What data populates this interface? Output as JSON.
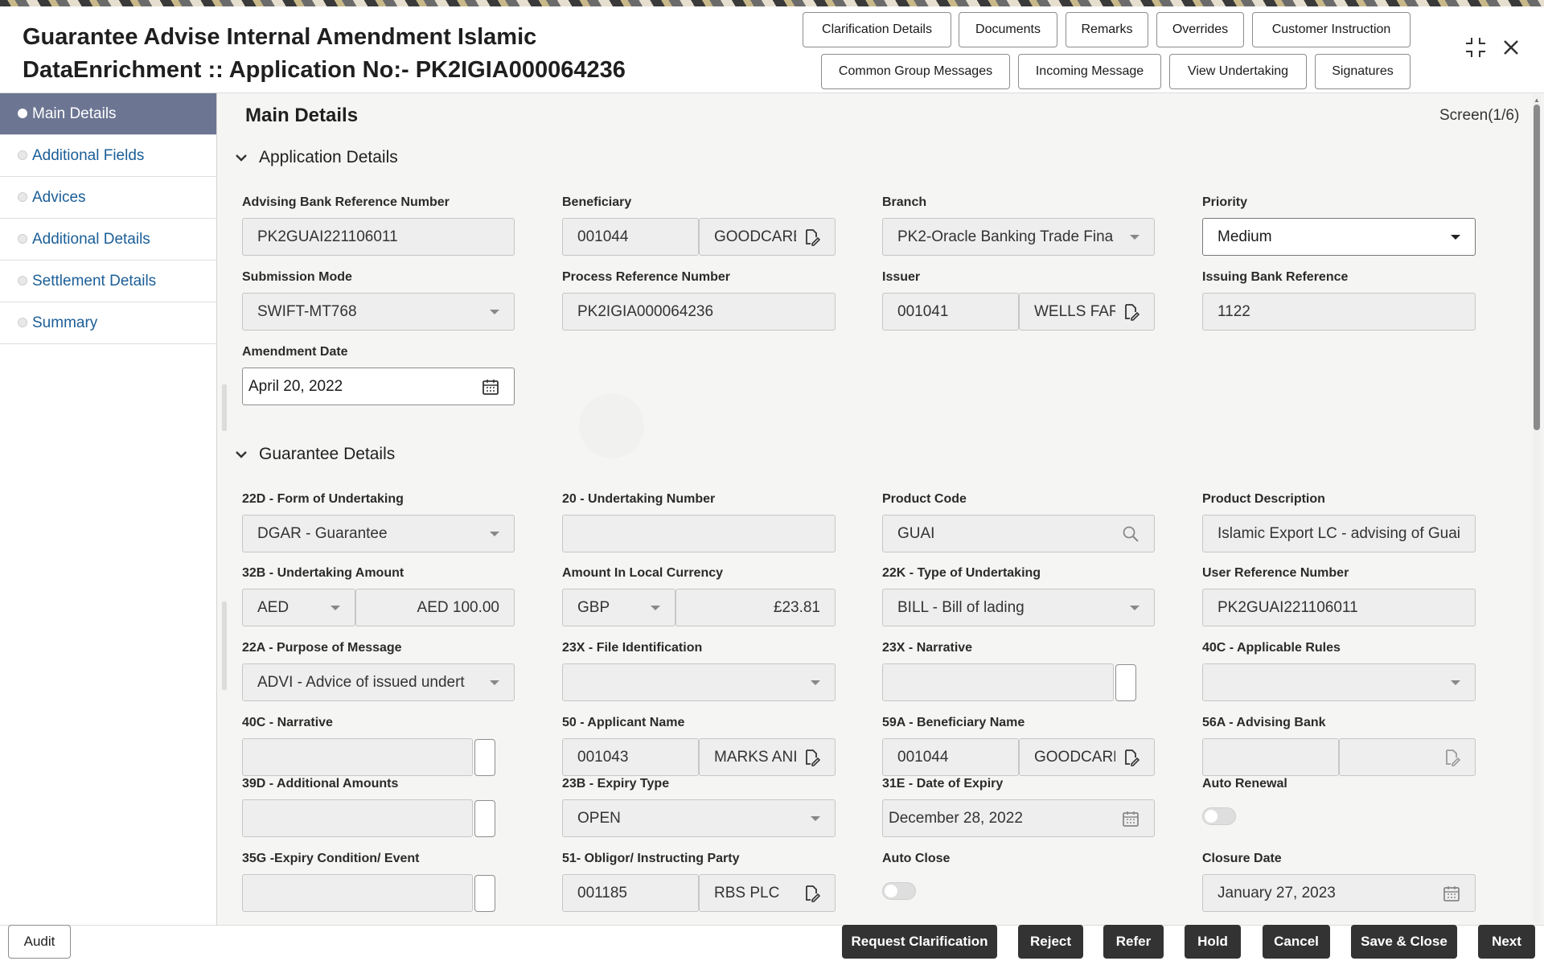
{
  "header": {
    "title_line1": "Guarantee Advise Internal Amendment Islamic",
    "title_line2": "DataEnrichment :: Application No:- PK2IGIA000064236",
    "buttons_row1": [
      "Clarification Details",
      "Documents",
      "Remarks",
      "Overrides",
      "Customer Instruction"
    ],
    "buttons_row2": [
      "Common Group Messages",
      "Incoming Message",
      "View Undertaking",
      "Signatures"
    ],
    "icons": [
      "collapse-icon",
      "close-icon"
    ]
  },
  "sidebar": {
    "items": [
      {
        "label": "Main Details",
        "active": true
      },
      {
        "label": "Additional Fields",
        "active": false
      },
      {
        "label": "Advices",
        "active": false
      },
      {
        "label": "Additional Details",
        "active": false
      },
      {
        "label": "Settlement Details",
        "active": false
      },
      {
        "label": "Summary",
        "active": false
      }
    ]
  },
  "main": {
    "title": "Main Details",
    "screen": "Screen(1/6)",
    "sections": {
      "application": "Application Details",
      "guarantee": "Guarantee Details"
    },
    "fields": {
      "advising_bank_ref": {
        "label": "Advising Bank Reference Number",
        "value": "PK2GUAI221106011"
      },
      "beneficiary": {
        "label": "Beneficiary",
        "id": "001044",
        "name": "GOODCARE"
      },
      "branch": {
        "label": "Branch",
        "value": "PK2-Oracle Banking Trade Fina"
      },
      "priority": {
        "label": "Priority",
        "value": "Medium"
      },
      "submission_mode": {
        "label": "Submission Mode",
        "value": "SWIFT-MT768"
      },
      "process_ref": {
        "label": "Process Reference Number",
        "value": "PK2IGIA000064236"
      },
      "issuer": {
        "label": "Issuer",
        "id": "001041",
        "name": "WELLS FAR"
      },
      "issuing_bank_ref": {
        "label": "Issuing Bank Reference",
        "value": "1122"
      },
      "amendment_date": {
        "label": "Amendment Date",
        "value": "April 20, 2022"
      },
      "form_of_undertaking": {
        "label": "22D - Form of Undertaking",
        "value": "DGAR - Guarantee"
      },
      "undertaking_number": {
        "label": "20 - Undertaking Number",
        "value": ""
      },
      "product_code": {
        "label": "Product Code",
        "value": "GUAI"
      },
      "product_description": {
        "label": "Product Description",
        "value": "Islamic Export LC - advising of Guai"
      },
      "undertaking_amount": {
        "label": "32B - Undertaking Amount",
        "currency": "AED",
        "amount": "AED 100.00"
      },
      "amount_local": {
        "label": "Amount In Local Currency",
        "currency": "GBP",
        "amount": "£23.81"
      },
      "type_of_undertaking": {
        "label": "22K - Type of Undertaking",
        "value": "BILL - Bill of lading"
      },
      "user_ref": {
        "label": "User Reference Number",
        "value": "PK2GUAI221106011"
      },
      "purpose_of_message": {
        "label": "22A - Purpose of Message",
        "value": "ADVI - Advice of issued undert"
      },
      "file_identification": {
        "label": "23X - File Identification",
        "value": ""
      },
      "narrative_23x": {
        "label": "23X - Narrative",
        "value": ""
      },
      "applicable_rules": {
        "label": "40C - Applicable Rules",
        "value": ""
      },
      "narrative_40c": {
        "label": "40C - Narrative",
        "value": ""
      },
      "applicant_name": {
        "label": "50 - Applicant Name",
        "id": "001043",
        "name": "MARKS ANI"
      },
      "beneficiary_name": {
        "label": "59A - Beneficiary Name",
        "id": "001044",
        "name": "GOODCARE"
      },
      "advising_bank": {
        "label": "56A - Advising Bank",
        "id": "",
        "name": ""
      },
      "additional_amounts": {
        "label": "39D - Additional Amounts",
        "value": ""
      },
      "expiry_type": {
        "label": "23B - Expiry Type",
        "value": "OPEN"
      },
      "date_of_expiry": {
        "label": "31E - Date of Expiry",
        "value": "December 28, 2022"
      },
      "auto_renewal": {
        "label": "Auto Renewal",
        "on": false
      },
      "expiry_condition": {
        "label": "35G -Expiry Condition/ Event",
        "value": ""
      },
      "obligor": {
        "label": "51- Obligor/ Instructing Party",
        "id": "001185",
        "name": "RBS PLC"
      },
      "auto_close": {
        "label": "Auto Close",
        "on": false
      },
      "closure_date": {
        "label": "Closure Date",
        "value": "January 27, 2023"
      }
    }
  },
  "footer": {
    "audit": "Audit",
    "buttons": [
      "Request Clarification",
      "Reject",
      "Refer",
      "Hold",
      "Cancel",
      "Save & Close",
      "Next"
    ],
    "button_color": "#333333"
  }
}
